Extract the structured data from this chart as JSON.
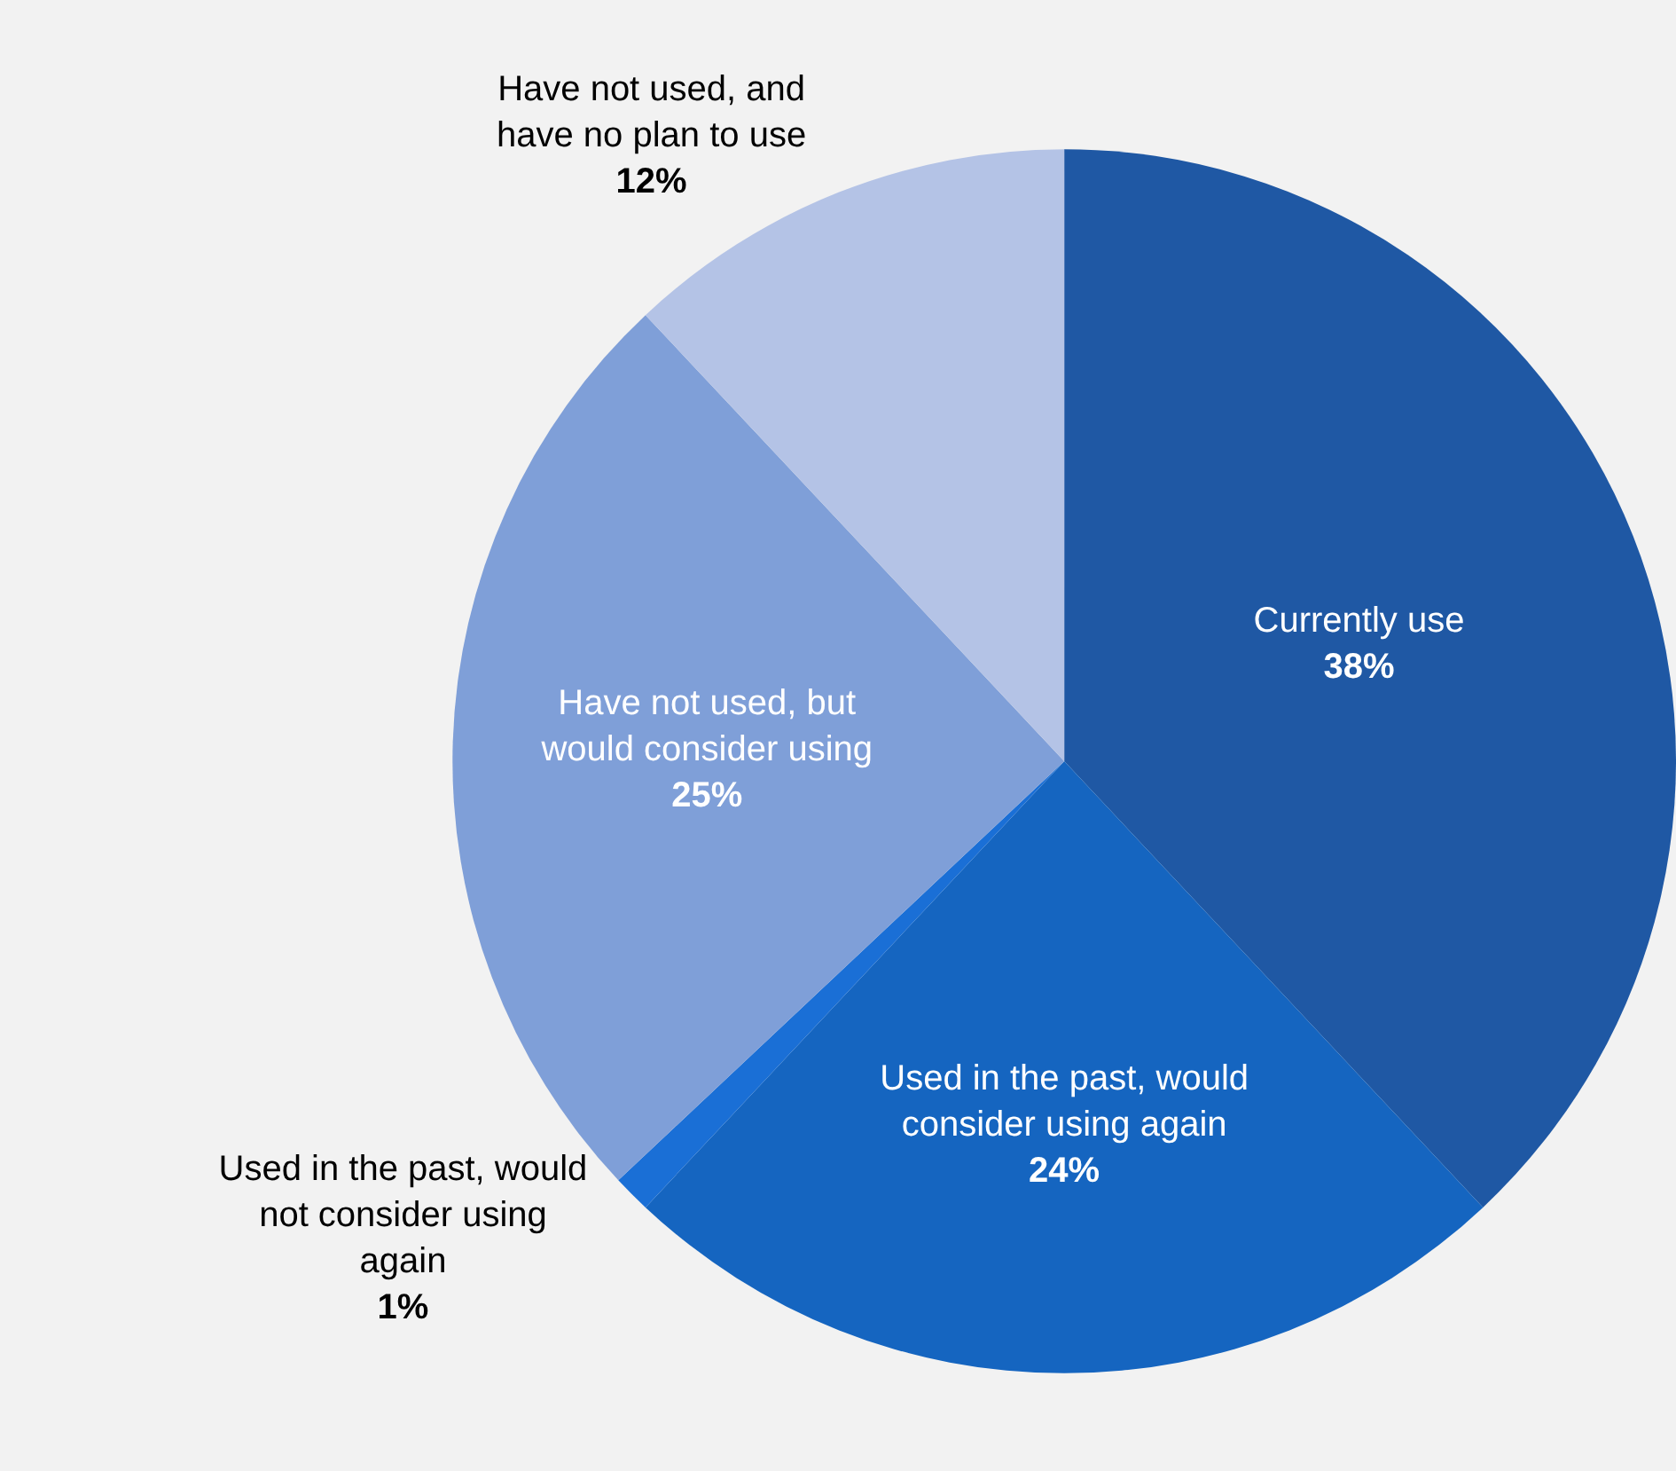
{
  "chart_data": {
    "type": "pie",
    "categories": [
      "Currently use",
      "Used in the past, would\nconsider using again",
      "Used in the past, would\nnot consider using\nagain",
      "Have not used, but\nwould consider using",
      "Have not used, and\nhave no plan to use"
    ],
    "values": [
      38,
      24,
      1,
      25,
      12
    ],
    "value_labels": [
      "38%",
      "24%",
      "1%",
      "25%",
      "12%"
    ],
    "colors": [
      "#1f58a4",
      "#1565c0",
      "#1a6fd6",
      "#7f9fd8",
      "#b4c3e6"
    ],
    "legend": false
  }
}
